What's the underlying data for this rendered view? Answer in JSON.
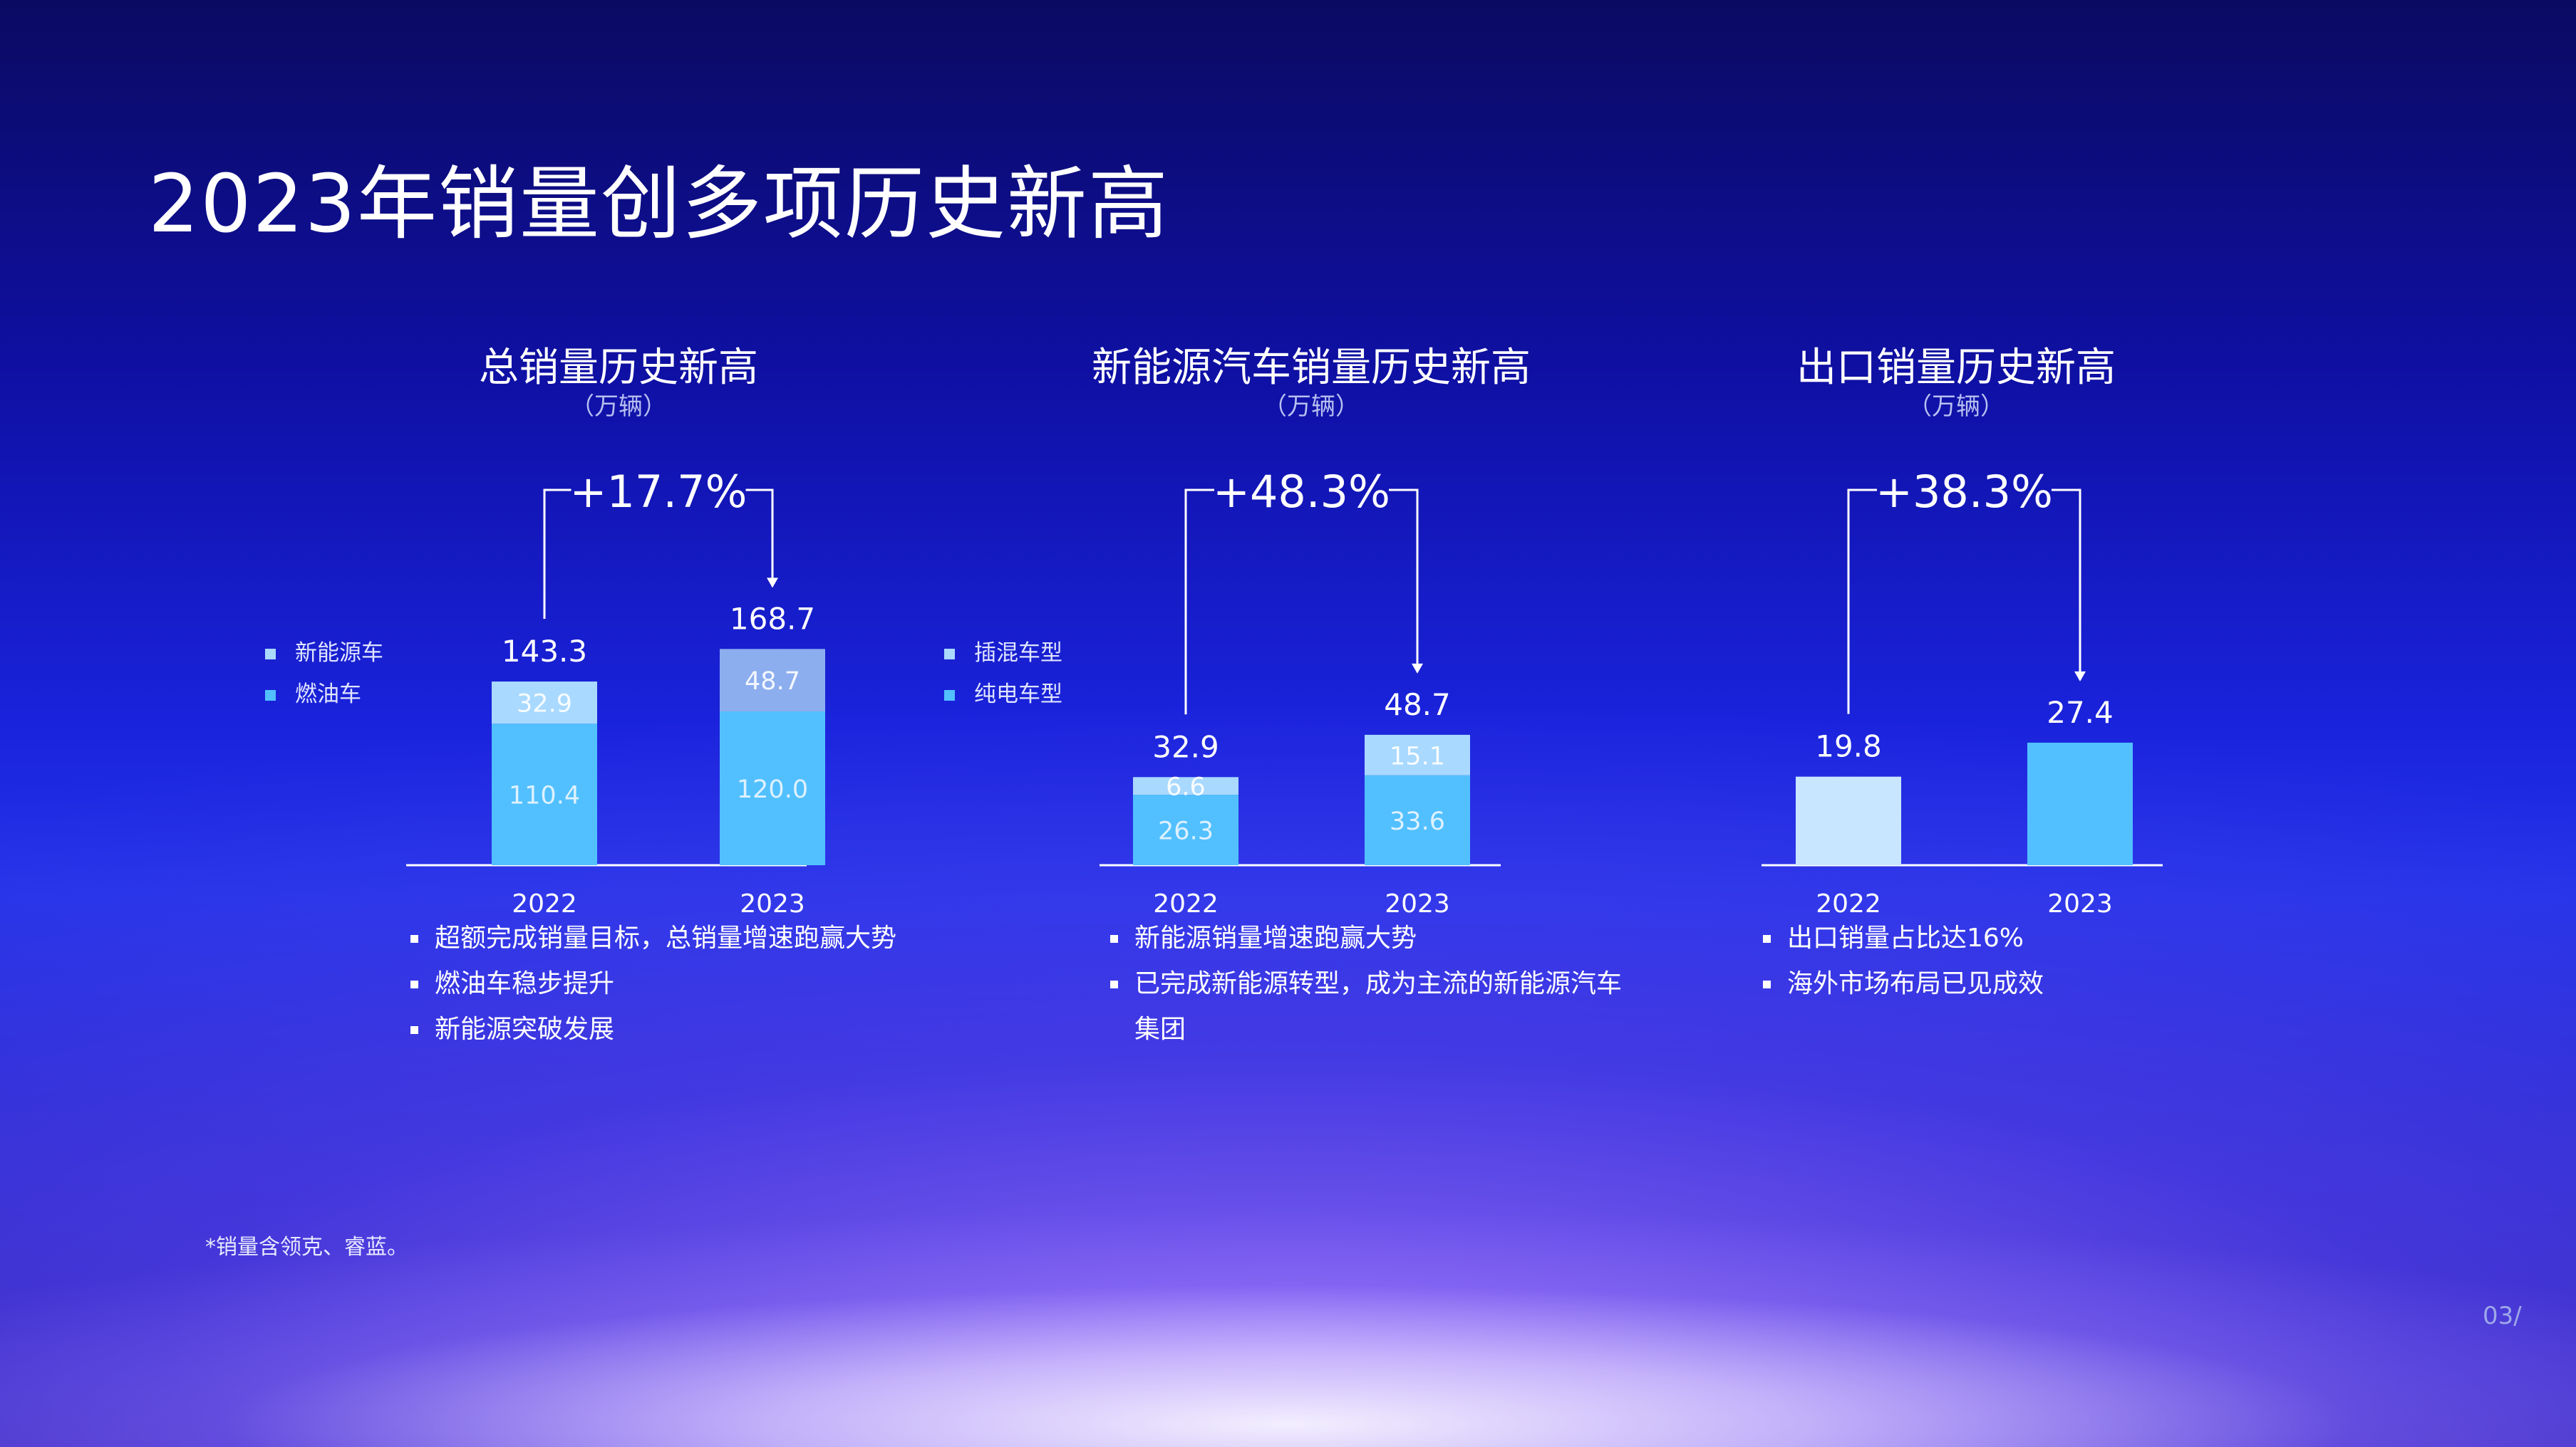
{
  "page": {
    "title": "2023年销量创多项历史新高",
    "footnote": "*销量含领克、睿蓝。",
    "page_number": "03/"
  },
  "colors": {
    "primary_bar": "#52c0ff",
    "secondary_bar_1": "#a9d9ff",
    "secondary_bar_2": "#8caeef",
    "export_2022": "#c8e6ff"
  },
  "chart_data": [
    {
      "type": "bar",
      "stacked": true,
      "title": "总销量历史新高",
      "subtitle": "（万辆）",
      "categories": [
        "2022",
        "2023"
      ],
      "series": [
        {
          "name": "燃油车",
          "values": [
            110.4,
            120.0
          ]
        },
        {
          "name": "新能源车",
          "values": [
            32.9,
            48.7
          ]
        }
      ],
      "totals": [
        143.3,
        168.7
      ],
      "growth": "+17.7%",
      "bullets": [
        "超额完成销量目标，总销量增速跑赢大势",
        "燃油车稳步提升",
        "新能源突破发展"
      ]
    },
    {
      "type": "bar",
      "stacked": true,
      "title": "新能源汽车销量历史新高",
      "subtitle": "（万辆）",
      "categories": [
        "2022",
        "2023"
      ],
      "series": [
        {
          "name": "纯电车型",
          "values": [
            26.3,
            33.6
          ]
        },
        {
          "name": "插混车型",
          "values": [
            6.6,
            15.1
          ]
        }
      ],
      "totals": [
        32.9,
        48.7
      ],
      "growth": "+48.3%",
      "bullets": [
        "新能源销量增速跑赢大势",
        "已完成新能源转型，成为主流的新能源汽车集团"
      ]
    },
    {
      "type": "bar",
      "stacked": false,
      "title": "出口销量历史新高",
      "subtitle": "（万辆）",
      "categories": [
        "2022",
        "2023"
      ],
      "series": [
        {
          "name": "",
          "values": [
            19.8,
            27.4
          ]
        }
      ],
      "totals": [
        19.8,
        27.4
      ],
      "growth": "+38.3%",
      "bullets": [
        "出口销量占比达16%",
        "海外市场布局已见成效"
      ]
    }
  ]
}
